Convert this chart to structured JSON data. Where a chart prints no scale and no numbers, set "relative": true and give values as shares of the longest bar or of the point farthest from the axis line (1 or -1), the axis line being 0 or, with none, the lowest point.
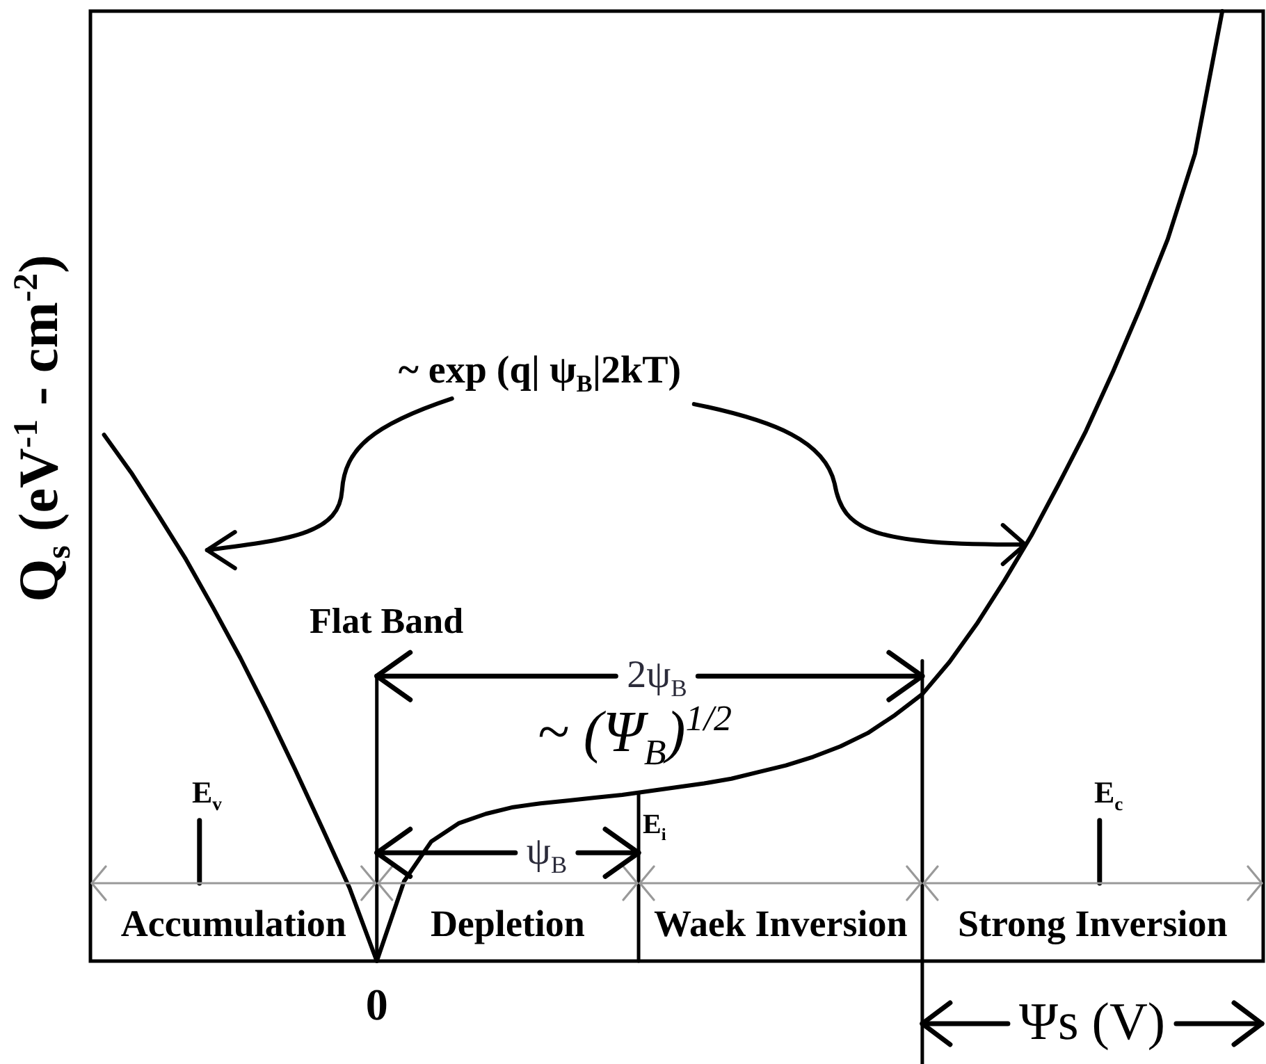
{
  "chart_data": {
    "type": "line",
    "relative": true,
    "color": "#000000",
    "ylabel": "Q$_{s}$ (eV$^{-1}$ - cm$^{-2}$)",
    "xlabel": "Ψs (V)",
    "categories": [
      null,
      null,
      null,
      null,
      null,
      null,
      null,
      null,
      null,
      null,
      null,
      null,
      null,
      null,
      null,
      null,
      null,
      null,
      null,
      null,
      null,
      null,
      null,
      null,
      null,
      null,
      null,
      null,
      null,
      null,
      null,
      null,
      null,
      null,
      null,
      null,
      null,
      null,
      null,
      null,
      null,
      null,
      null
    ],
    "values": [
      0.554,
      0.514,
      0.469,
      0.423,
      0.372,
      0.319,
      0.262,
      0.202,
      0.14,
      0.077,
      0,
      0.084,
      0.126,
      0.145,
      0.155,
      0.162,
      0.166,
      0.169,
      0.172,
      0.175,
      0.179,
      0.183,
      0.187,
      0.192,
      0.199,
      0.206,
      0.215,
      0.226,
      0.24,
      0.259,
      0.281,
      0.315,
      0.355,
      0.4,
      0.448,
      0.502,
      0.558,
      0.621,
      0.688,
      0.76,
      0.85,
      1,
      null
    ],
    "annotations": [
      "~ exp (q| ψ$_{B}$|2kT)",
      "Flat Band",
      "2ψ$_{B}$",
      "~ (Ψ$_{B}$)$^{1/2}$",
      "E$_{v}$",
      "E$_{i}$",
      "E$_{c}$",
      "ψ$_{B}$",
      "Accumulation",
      "Depletion",
      "Waek Inversion",
      "Strong Inversion",
      "0"
    ]
  }
}
